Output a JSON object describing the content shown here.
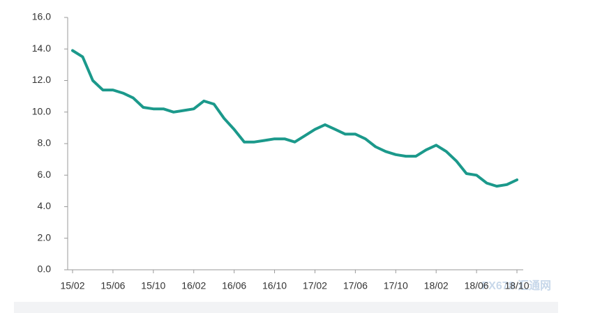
{
  "chart_data": {
    "type": "line",
    "categories": [
      "15/02",
      null,
      null,
      null,
      "15/06",
      null,
      null,
      null,
      "15/10",
      null,
      null,
      null,
      "16/02",
      null,
      null,
      null,
      "16/06",
      null,
      null,
      null,
      "16/10",
      null,
      null,
      null,
      "17/02",
      null,
      null,
      null,
      "17/06",
      null,
      null,
      null,
      "17/10",
      null,
      null,
      null,
      "18/02",
      null,
      null,
      null,
      "18/06",
      null,
      null,
      null,
      "18/10"
    ],
    "values": [
      13.9,
      13.5,
      12.0,
      11.4,
      11.4,
      11.2,
      10.9,
      10.3,
      10.2,
      10.2,
      10.0,
      10.1,
      10.2,
      10.7,
      10.5,
      9.6,
      8.9,
      8.1,
      8.1,
      8.2,
      8.3,
      8.3,
      8.1,
      8.5,
      8.9,
      9.2,
      8.9,
      8.6,
      8.6,
      8.3,
      7.8,
      7.5,
      7.3,
      7.2,
      7.2,
      7.6,
      7.9,
      7.5,
      6.9,
      6.1,
      6.0,
      5.5,
      5.3,
      5.4,
      5.7
    ],
    "color": "#1b998b",
    "ylim": [
      0,
      16
    ],
    "yticks": [
      {
        "value": 0,
        "label": "0.0"
      },
      {
        "value": 2,
        "label": "2.0"
      },
      {
        "value": 4,
        "label": "4.0"
      },
      {
        "value": 6,
        "label": "6.0"
      },
      {
        "value": 8,
        "label": "8.0"
      },
      {
        "value": 10,
        "label": "10.0"
      },
      {
        "value": 12,
        "label": "12.0"
      },
      {
        "value": 14,
        "label": "14.0"
      },
      {
        "value": 16,
        "label": "16.0"
      }
    ],
    "grid": false,
    "watermark": "FX678 汇通网"
  }
}
